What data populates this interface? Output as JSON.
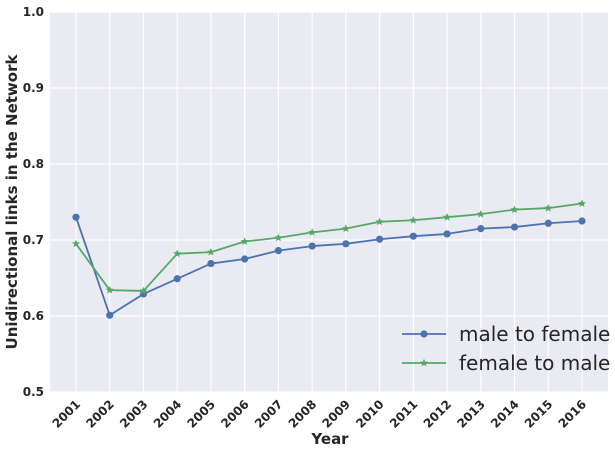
{
  "chart_data": {
    "type": "line",
    "xlabel": "Year",
    "ylabel": "Unidirectional links in the Network",
    "x": [
      "2001",
      "2002",
      "2003",
      "2004",
      "2005",
      "2006",
      "2007",
      "2008",
      "2009",
      "2010",
      "2011",
      "2012",
      "2013",
      "2014",
      "2015",
      "2016"
    ],
    "ylim": [
      0.5,
      1.0
    ],
    "yticks": [
      "0.5",
      "0.6",
      "0.7",
      "0.8",
      "0.9",
      "1.0"
    ],
    "grid": true,
    "legend_position": "lower-right",
    "background_color": "#EAEAF2",
    "grid_color": "#FFFFFF",
    "series": [
      {
        "name": "male to female",
        "color": "#4C72B0",
        "marker": "circle",
        "values": [
          0.73,
          0.601,
          0.629,
          0.649,
          0.669,
          0.675,
          0.686,
          0.692,
          0.695,
          0.701,
          0.705,
          0.708,
          0.715,
          0.717,
          0.722,
          0.725
        ]
      },
      {
        "name": "female to male",
        "color": "#55A868",
        "marker": "star",
        "values": [
          0.695,
          0.634,
          0.633,
          0.682,
          0.684,
          0.698,
          0.703,
          0.71,
          0.715,
          0.724,
          0.726,
          0.73,
          0.734,
          0.74,
          0.742,
          0.748
        ]
      }
    ]
  }
}
